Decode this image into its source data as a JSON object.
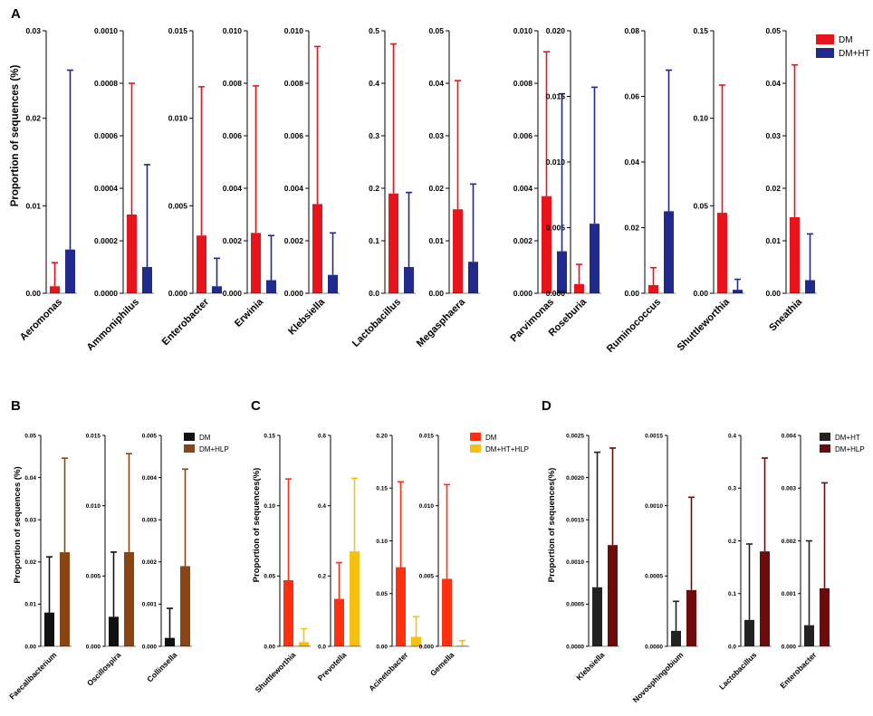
{
  "panels": [
    {
      "letter": "A",
      "ylabel": "Proportion of sequences (%)",
      "legend": [
        {
          "label": "DM",
          "color": "#e8141c"
        },
        {
          "label": "DM+HT",
          "color": "#1f2a8c"
        }
      ]
    },
    {
      "letter": "B",
      "ylabel": "Proportion of sequences (%)",
      "legend": [
        {
          "label": "DM",
          "color": "#111111"
        },
        {
          "label": "DM+HLP",
          "color": "#8b4513"
        }
      ]
    },
    {
      "letter": "C",
      "ylabel": "Proportion of sequences(%)",
      "legend": [
        {
          "label": "DM",
          "color": "#ff3010"
        },
        {
          "label": "DM+HT+HLP",
          "color": "#f5c010"
        }
      ]
    },
    {
      "letter": "D",
      "ylabel": "Proportion of sequences(%)",
      "legend": [
        {
          "label": "DM+HT",
          "color": "#222222"
        },
        {
          "label": "DM+HLP",
          "color": "#6e0a0a"
        }
      ]
    }
  ],
  "chart_data": [
    {
      "type": "bar",
      "panel": "A",
      "ylabel": "Proportion of sequences (%)",
      "series_names": [
        "DM",
        "DM+HT"
      ],
      "colors": [
        "#e8141c",
        "#1f2a8c"
      ],
      "subplots": [
        {
          "category": "Aeromonas",
          "ylim": [
            0,
            0.03
          ],
          "ticks": [
            "0.00",
            "0.01",
            "0.02",
            "0.03"
          ],
          "values": [
            0.0008,
            0.005
          ],
          "errors": [
            0.0035,
            0.0255
          ]
        },
        {
          "category": "Ammoniphilus",
          "ylim": [
            0,
            0.001
          ],
          "ticks": [
            "0.0000",
            "0.0002",
            "0.0004",
            "0.0006",
            "0.0008",
            "0.0010"
          ],
          "values": [
            0.0003,
            0.0001
          ],
          "errors": [
            0.0008,
            0.00049
          ]
        },
        {
          "category": "Enterobacter",
          "ylim": [
            0,
            0.015
          ],
          "ticks": [
            "0.000",
            "0.005",
            "0.010",
            "0.015"
          ],
          "values": [
            0.0033,
            0.0004
          ],
          "errors": [
            0.0118,
            0.002
          ]
        },
        {
          "category": "Erwinia",
          "ylim": [
            0,
            0.01
          ],
          "ticks": [
            "0.000",
            "0.002",
            "0.004",
            "0.006",
            "0.008",
            "0.010"
          ],
          "values": [
            0.0023,
            0.0005
          ],
          "errors": [
            0.0079,
            0.0022
          ]
        },
        {
          "category": "Klebsiella",
          "ylim": [
            0,
            0.01
          ],
          "ticks": [
            "0.000",
            "0.002",
            "0.004",
            "0.006",
            "0.008",
            "0.010"
          ],
          "values": [
            0.0034,
            0.0007
          ],
          "errors": [
            0.0094,
            0.0023
          ]
        },
        {
          "category": "Lactobacillus",
          "ylim": [
            0,
            0.5
          ],
          "ticks": [
            "0.0",
            "0.1",
            "0.2",
            "0.3",
            "0.4",
            "0.5"
          ],
          "values": [
            0.19,
            0.05
          ],
          "errors": [
            0.475,
            0.192
          ]
        },
        {
          "category": "Megasphaera",
          "ylim": [
            0,
            0.05
          ],
          "ticks": [
            "0.00",
            "0.01",
            "0.02",
            "0.03",
            "0.04",
            "0.05"
          ],
          "values": [
            0.016,
            0.006
          ],
          "errors": [
            0.0405,
            0.0208
          ]
        },
        {
          "category": "Parvimonas",
          "ylim": [
            0,
            0.01
          ],
          "ticks": [
            "0.000",
            "0.002",
            "0.004",
            "0.006",
            "0.008",
            "0.010"
          ],
          "values": [
            0.0037,
            0.0016
          ],
          "errors": [
            0.0092,
            0.0076
          ]
        },
        {
          "category": "Roseburia",
          "ylim": [
            0,
            0.02
          ],
          "ticks": [
            "0.000",
            "0.005",
            "0.010",
            "0.015",
            "0.020"
          ],
          "values": [
            0.0007,
            0.0053
          ],
          "errors": [
            0.0022,
            0.0157
          ]
        },
        {
          "category": "Ruminococcus",
          "ylim": [
            0,
            0.08
          ],
          "ticks": [
            "0.00",
            "0.02",
            "0.04",
            "0.06",
            "0.08"
          ],
          "values": [
            0.0025,
            0.025
          ],
          "errors": [
            0.0078,
            0.068
          ]
        },
        {
          "category": "Shuttleworthia",
          "ylim": [
            0,
            0.15
          ],
          "ticks": [
            "0.00",
            "0.05",
            "0.10",
            "0.15"
          ],
          "values": [
            0.046,
            0.002
          ],
          "errors": [
            0.119,
            0.008
          ]
        },
        {
          "category": "Sneathia",
          "ylim": [
            0,
            0.05
          ],
          "ticks": [
            "0.00",
            "0.01",
            "0.02",
            "0.03",
            "0.04",
            "0.05"
          ],
          "values": [
            0.0145,
            0.0025
          ],
          "errors": [
            0.0435,
            0.0113
          ]
        }
      ]
    },
    {
      "type": "bar",
      "panel": "B",
      "ylabel": "Proportion of sequences (%)",
      "series_names": [
        "DM",
        "DM+HLP"
      ],
      "colors": [
        "#111111",
        "#8b4513"
      ],
      "subplots": [
        {
          "category": "Faecalibacterium",
          "ylim": [
            0,
            0.05
          ],
          "ticks": [
            "0.00",
            "0.01",
            "0.02",
            "0.03",
            "0.04",
            "0.05"
          ],
          "values": [
            0.008,
            0.0223
          ],
          "errors": [
            0.0212,
            0.0446
          ]
        },
        {
          "category": "Oscillospira",
          "ylim": [
            0,
            0.015
          ],
          "ticks": [
            "0.000",
            "0.005",
            "0.010",
            "0.015"
          ],
          "values": [
            0.0021,
            0.0067
          ],
          "errors": [
            0.0067,
            0.0137
          ]
        },
        {
          "category": "Collinsella",
          "ylim": [
            0,
            0.005
          ],
          "ticks": [
            "0.000",
            "0.001",
            "0.002",
            "0.003",
            "0.004",
            "0.005"
          ],
          "values": [
            0.0002,
            0.0019
          ],
          "errors": [
            0.0009,
            0.0042
          ]
        }
      ]
    },
    {
      "type": "bar",
      "panel": "C",
      "ylabel": "Proportion of sequences(%)",
      "series_names": [
        "DM",
        "DM+HT+HLP"
      ],
      "colors": [
        "#ff3010",
        "#f5c010"
      ],
      "subplots": [
        {
          "category": "Shuttleworthia",
          "ylim": [
            0,
            0.15
          ],
          "ticks": [
            "0.00",
            "0.05",
            "0.10",
            "0.15"
          ],
          "values": [
            0.047,
            0.003
          ],
          "errors": [
            0.119,
            0.0125
          ]
        },
        {
          "category": "Prevotella",
          "ylim": [
            0,
            0.6
          ],
          "ticks": [
            "0.0",
            "0.2",
            "0.4",
            "0.6"
          ],
          "values": [
            0.135,
            0.27
          ],
          "errors": [
            0.238,
            0.478
          ]
        },
        {
          "category": "Acinetobacter",
          "ylim": [
            0,
            0.2
          ],
          "ticks": [
            "0.00",
            "0.05",
            "0.10",
            "0.15",
            "0.20"
          ],
          "values": [
            0.075,
            0.009
          ],
          "errors": [
            0.156,
            0.028
          ]
        },
        {
          "category": "Gemella",
          "ylim": [
            0,
            0.015
          ],
          "ticks": [
            "0.000",
            "0.005",
            "0.010",
            "0.015"
          ],
          "values": [
            0.0048,
            5e-05
          ],
          "errors": [
            0.0115,
            0.0004
          ]
        }
      ]
    },
    {
      "type": "bar",
      "panel": "D",
      "ylabel": "Proportion of sequences(%)",
      "series_names": [
        "DM+HT",
        "DM+HLP"
      ],
      "colors": [
        "#222222",
        "#6e0a0a"
      ],
      "subplots": [
        {
          "category": "Klebsiella",
          "ylim": [
            0,
            0.0025
          ],
          "ticks": [
            "0.0000",
            "0.0005",
            "0.0010",
            "0.0015",
            "0.0020",
            "0.0025"
          ],
          "values": [
            0.0007,
            0.0012
          ],
          "errors": [
            0.0023,
            0.00235
          ]
        },
        {
          "category": "Novosphingobium",
          "ylim": [
            0,
            0.0015
          ],
          "ticks": [
            "0.0000",
            "0.0005",
            "0.0010",
            "0.0015"
          ],
          "values": [
            0.00011,
            0.0004
          ],
          "errors": [
            0.00032,
            0.00106
          ]
        },
        {
          "category": "Lactobacillus",
          "ylim": [
            0,
            0.4
          ],
          "ticks": [
            "0.0",
            "0.1",
            "0.2",
            "0.3",
            "0.4"
          ],
          "values": [
            0.05,
            0.18
          ],
          "errors": [
            0.194,
            0.357
          ]
        },
        {
          "category": "Enterobacter",
          "ylim": [
            0,
            0.004
          ],
          "ticks": [
            "0.000",
            "0.001",
            "0.002",
            "0.003",
            "0.004"
          ],
          "values": [
            0.0004,
            0.0011
          ],
          "errors": [
            0.002,
            0.0031
          ]
        }
      ]
    }
  ]
}
